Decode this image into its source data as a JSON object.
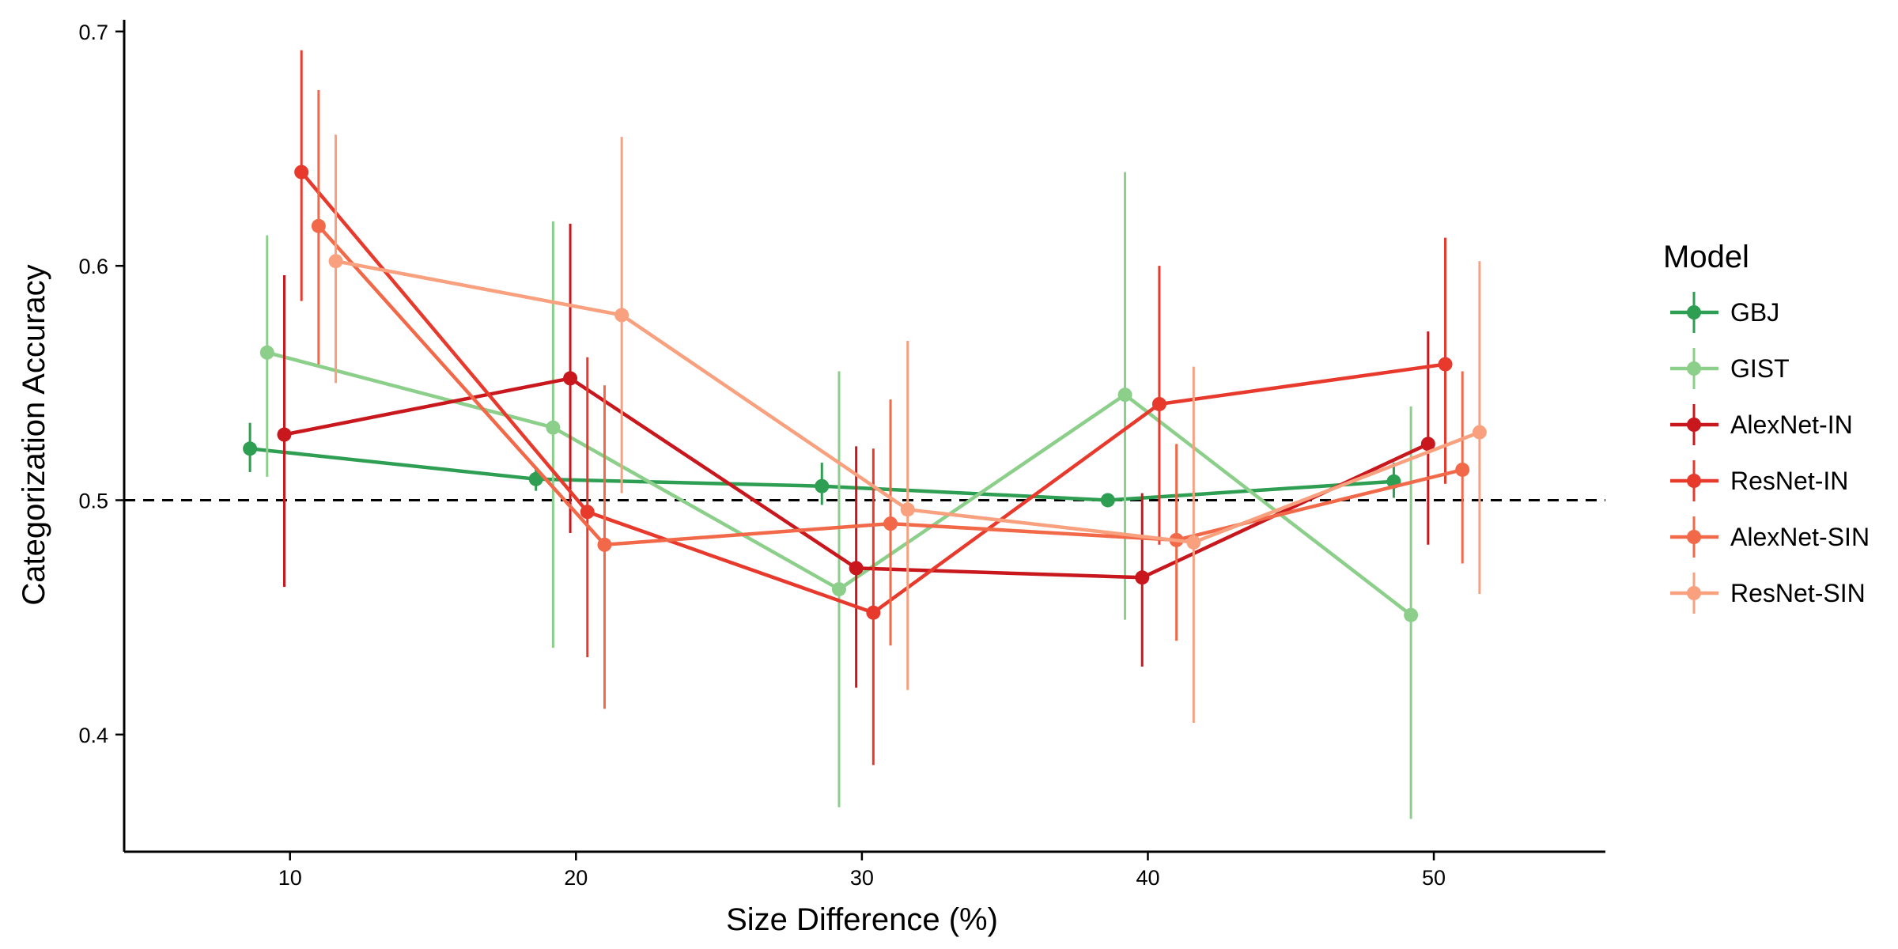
{
  "chart_data": {
    "type": "line",
    "xlabel": "Size Difference (%)",
    "ylabel": "Categorization Accuracy",
    "xlim": [
      4.2,
      56
    ],
    "ylim": [
      0.35,
      0.705
    ],
    "x_ticks": [
      10,
      20,
      30,
      40,
      50
    ],
    "y_ticks": [
      0.4,
      0.5,
      0.6,
      0.7
    ],
    "x_tick_labels": [
      "10",
      "20",
      "30",
      "40",
      "50"
    ],
    "y_tick_labels": [
      "0.4",
      "0.5",
      "0.6",
      "0.7"
    ],
    "reference_line": {
      "y": 0.5,
      "style": "dashed"
    },
    "grid": false,
    "legend": {
      "title": "Model",
      "position": "right"
    },
    "categories": [
      10,
      20,
      30,
      40,
      50
    ],
    "series": [
      {
        "name": "GBJ",
        "color": "#2e9e52",
        "x": [
          8.6,
          18.6,
          28.6,
          38.6,
          48.6
        ],
        "values": [
          0.522,
          0.509,
          0.506,
          0.5,
          0.508
        ],
        "lower": [
          0.512,
          0.504,
          0.498,
          0.497,
          0.501
        ],
        "upper": [
          0.533,
          0.514,
          0.516,
          0.503,
          0.516
        ]
      },
      {
        "name": "GIST",
        "color": "#8ccf8a",
        "x": [
          9.2,
          19.2,
          29.2,
          39.2,
          49.2
        ],
        "values": [
          0.563,
          0.531,
          0.462,
          0.545,
          0.451
        ],
        "lower": [
          0.51,
          0.437,
          0.369,
          0.449,
          0.364
        ],
        "upper": [
          0.613,
          0.619,
          0.555,
          0.64,
          0.54
        ]
      },
      {
        "name": "AlexNet-IN",
        "color": "#c8171d",
        "x": [
          9.8,
          19.8,
          29.8,
          39.8,
          49.8
        ],
        "values": [
          0.528,
          0.552,
          0.471,
          0.467,
          0.524
        ],
        "lower": [
          0.463,
          0.486,
          0.42,
          0.429,
          0.481
        ],
        "upper": [
          0.596,
          0.618,
          0.523,
          0.503,
          0.572
        ]
      },
      {
        "name": "ResNet-IN",
        "color": "#e8392d",
        "x": [
          10.4,
          20.4,
          30.4,
          40.4,
          50.4
        ],
        "values": [
          0.64,
          0.495,
          0.452,
          0.541,
          0.558
        ],
        "lower": [
          0.585,
          0.433,
          0.387,
          0.481,
          0.507
        ],
        "upper": [
          0.692,
          0.561,
          0.522,
          0.6,
          0.612
        ]
      },
      {
        "name": "AlexNet-SIN",
        "color": "#f2694a",
        "x": [
          11.0,
          21.0,
          31.0,
          41.0,
          51.0
        ],
        "values": [
          0.617,
          0.481,
          0.49,
          0.483,
          0.513
        ],
        "lower": [
          0.558,
          0.411,
          0.438,
          0.44,
          0.473
        ],
        "upper": [
          0.675,
          0.549,
          0.543,
          0.524,
          0.555
        ]
      },
      {
        "name": "ResNet-SIN",
        "color": "#f9a07f",
        "x": [
          11.6,
          21.6,
          31.6,
          41.6,
          51.6
        ],
        "values": [
          0.602,
          0.579,
          0.496,
          0.482,
          0.529
        ],
        "lower": [
          0.55,
          0.503,
          0.419,
          0.405,
          0.46
        ],
        "upper": [
          0.656,
          0.655,
          0.568,
          0.557,
          0.602
        ]
      }
    ]
  }
}
